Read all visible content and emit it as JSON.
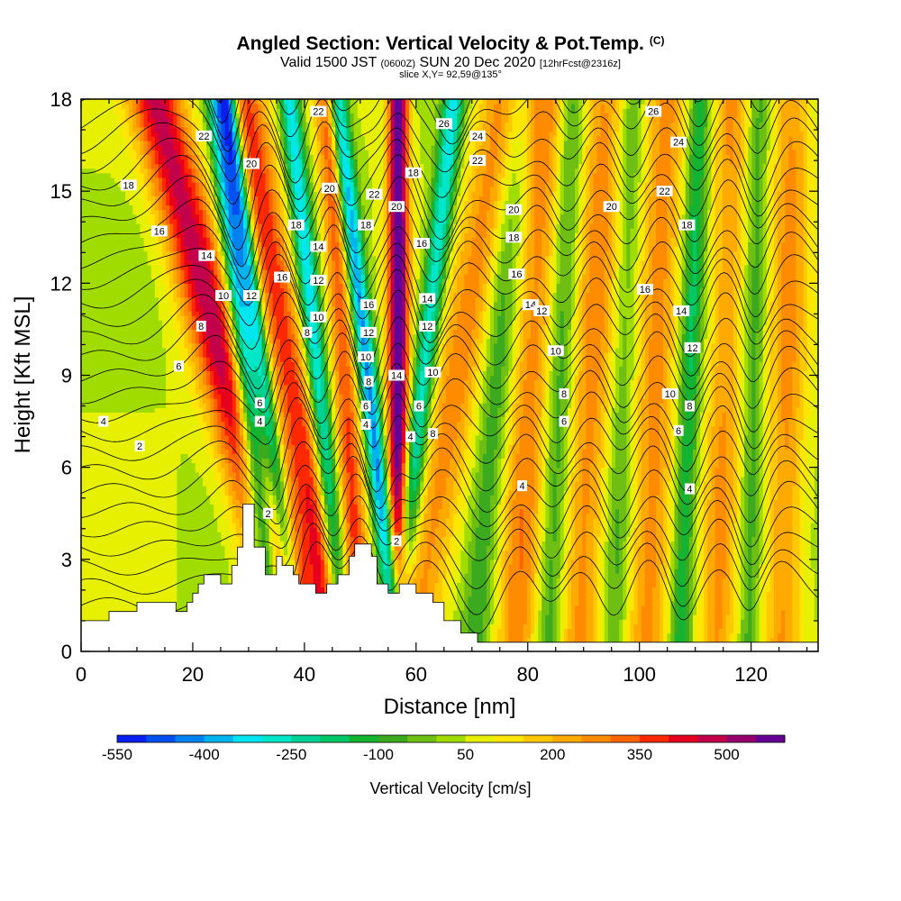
{
  "title": {
    "main": "Angled Section: Vertical Velocity & Pot.Temp.",
    "copyright": "(C)",
    "valid_prefix": "Valid 1500 JST",
    "valid_utc": "(0600Z)",
    "valid_date": "SUN 20 Dec 2020",
    "forecast": "[12hrFcst@2316z]",
    "slice": "slice X,Y= 92,59@135°"
  },
  "chart_data": {
    "type": "heatmap",
    "xlabel": "Distance [nm]",
    "ylabel": "Height [Kft MSL]",
    "xlim": [
      0,
      132
    ],
    "ylim": [
      0,
      18
    ],
    "x_ticks": [
      0,
      20,
      40,
      60,
      80,
      100,
      120
    ],
    "y_ticks": [
      0,
      3,
      6,
      9,
      12,
      15,
      18
    ],
    "colorbar": {
      "label": "Vertical Velocity [cm/s]",
      "ticks": [
        "-550",
        "-400",
        "-250",
        "-100",
        "50",
        "200",
        "350",
        "500"
      ],
      "bins": [
        -550,
        -500,
        -450,
        -400,
        -350,
        -300,
        -250,
        -200,
        -150,
        -100,
        -50,
        0,
        50,
        100,
        150,
        200,
        250,
        300,
        350,
        400,
        450,
        500,
        550
      ],
      "colors": [
        "#0a1ef0",
        "#0050f0",
        "#0082f0",
        "#00b4ef",
        "#00e6f0",
        "#00e6c8",
        "#00d296",
        "#00c864",
        "#14b432",
        "#3caa1e",
        "#6ebe14",
        "#a0dc00",
        "#e6f000",
        "#ffe600",
        "#ffc800",
        "#ffaa00",
        "#ff8c00",
        "#ff6400",
        "#ff2800",
        "#e6001e",
        "#c3004b",
        "#96006e",
        "#640096"
      ]
    },
    "terrain_kft": [
      [
        0,
        1.0
      ],
      [
        5,
        1.0
      ],
      [
        5,
        1.3
      ],
      [
        10,
        1.3
      ],
      [
        10,
        1.6
      ],
      [
        17,
        1.6
      ],
      [
        17,
        1.3
      ],
      [
        19,
        1.3
      ],
      [
        19,
        1.6
      ],
      [
        20,
        1.6
      ],
      [
        20,
        1.9
      ],
      [
        21,
        1.9
      ],
      [
        21,
        2.2
      ],
      [
        22,
        2.2
      ],
      [
        22,
        2.5
      ],
      [
        25,
        2.5
      ],
      [
        25,
        2.2
      ],
      [
        27,
        2.2
      ],
      [
        27,
        2.8
      ],
      [
        28,
        2.8
      ],
      [
        28,
        3.4
      ],
      [
        29,
        3.4
      ],
      [
        29,
        4.8
      ],
      [
        31,
        4.8
      ],
      [
        31,
        3.4
      ],
      [
        33,
        3.4
      ],
      [
        33,
        2.5
      ],
      [
        35,
        2.5
      ],
      [
        35,
        3.1
      ],
      [
        36,
        3.1
      ],
      [
        36,
        2.8
      ],
      [
        38,
        2.8
      ],
      [
        38,
        2.5
      ],
      [
        39,
        2.5
      ],
      [
        39,
        2.2
      ],
      [
        42,
        2.2
      ],
      [
        42,
        1.9
      ],
      [
        44,
        1.9
      ],
      [
        44,
        2.2
      ],
      [
        46,
        2.2
      ],
      [
        46,
        2.5
      ],
      [
        48,
        2.5
      ],
      [
        48,
        3.1
      ],
      [
        49,
        3.1
      ],
      [
        49,
        3.5
      ],
      [
        52,
        3.5
      ],
      [
        52,
        3.1
      ],
      [
        53,
        3.1
      ],
      [
        53,
        2.2
      ],
      [
        55,
        2.2
      ],
      [
        55,
        1.9
      ],
      [
        57,
        1.9
      ],
      [
        57,
        2.2
      ],
      [
        60,
        2.2
      ],
      [
        60,
        1.9
      ],
      [
        63,
        1.9
      ],
      [
        63,
        1.6
      ],
      [
        65,
        1.6
      ],
      [
        65,
        1.0
      ],
      [
        68,
        1.0
      ],
      [
        68,
        0.6
      ],
      [
        71,
        0.6
      ],
      [
        71,
        0.3
      ],
      [
        132,
        0.3
      ]
    ],
    "theta_contour_labels": [
      {
        "x": 10.5,
        "y": 6.7,
        "text": "2"
      },
      {
        "x": 4.0,
        "y": 7.5,
        "text": "4"
      },
      {
        "x": 17.5,
        "y": 9.3,
        "text": "6"
      },
      {
        "x": 21.5,
        "y": 10.6,
        "text": "8"
      },
      {
        "x": 25.5,
        "y": 11.6,
        "text": "10"
      },
      {
        "x": 22.5,
        "y": 12.9,
        "text": "14"
      },
      {
        "x": 14.0,
        "y": 13.7,
        "text": "16"
      },
      {
        "x": 8.5,
        "y": 15.2,
        "text": "18"
      },
      {
        "x": 22.0,
        "y": 16.8,
        "text": "22"
      },
      {
        "x": 30.5,
        "y": 11.6,
        "text": "12"
      },
      {
        "x": 32.0,
        "y": 8.1,
        "text": "6"
      },
      {
        "x": 32.0,
        "y": 7.5,
        "text": "4"
      },
      {
        "x": 33.5,
        "y": 4.5,
        "text": "2"
      },
      {
        "x": 30.5,
        "y": 15.9,
        "text": "20"
      },
      {
        "x": 36.0,
        "y": 12.2,
        "text": "16"
      },
      {
        "x": 38.5,
        "y": 13.9,
        "text": "18"
      },
      {
        "x": 40.5,
        "y": 10.4,
        "text": "8"
      },
      {
        "x": 42.5,
        "y": 10.9,
        "text": "10"
      },
      {
        "x": 42.5,
        "y": 12.1,
        "text": "12"
      },
      {
        "x": 42.5,
        "y": 13.2,
        "text": "14"
      },
      {
        "x": 44.5,
        "y": 15.1,
        "text": "20"
      },
      {
        "x": 42.5,
        "y": 17.6,
        "text": "22"
      },
      {
        "x": 51.5,
        "y": 11.3,
        "text": "16"
      },
      {
        "x": 51.5,
        "y": 10.4,
        "text": "12"
      },
      {
        "x": 51.0,
        "y": 9.6,
        "text": "10"
      },
      {
        "x": 51.5,
        "y": 8.8,
        "text": "8"
      },
      {
        "x": 51.0,
        "y": 8.0,
        "text": "6"
      },
      {
        "x": 51.0,
        "y": 7.4,
        "text": "4"
      },
      {
        "x": 51.0,
        "y": 13.9,
        "text": "18"
      },
      {
        "x": 52.5,
        "y": 14.9,
        "text": "22"
      },
      {
        "x": 56.5,
        "y": 9.0,
        "text": "14"
      },
      {
        "x": 56.5,
        "y": 14.5,
        "text": "20"
      },
      {
        "x": 56.5,
        "y": 3.6,
        "text": "2"
      },
      {
        "x": 59.0,
        "y": 7.0,
        "text": "4"
      },
      {
        "x": 60.5,
        "y": 8.0,
        "text": "6"
      },
      {
        "x": 63.0,
        "y": 7.1,
        "text": "8"
      },
      {
        "x": 63.0,
        "y": 9.1,
        "text": "10"
      },
      {
        "x": 62.0,
        "y": 10.6,
        "text": "12"
      },
      {
        "x": 62.0,
        "y": 11.5,
        "text": "14"
      },
      {
        "x": 61.0,
        "y": 13.3,
        "text": "16"
      },
      {
        "x": 59.5,
        "y": 15.6,
        "text": "18"
      },
      {
        "x": 65.0,
        "y": 17.2,
        "text": "26"
      },
      {
        "x": 71.0,
        "y": 16.0,
        "text": "22"
      },
      {
        "x": 71.0,
        "y": 16.8,
        "text": "24"
      },
      {
        "x": 77.5,
        "y": 14.4,
        "text": "20"
      },
      {
        "x": 77.5,
        "y": 13.5,
        "text": "18"
      },
      {
        "x": 78.0,
        "y": 12.3,
        "text": "16"
      },
      {
        "x": 80.5,
        "y": 11.3,
        "text": "14"
      },
      {
        "x": 82.5,
        "y": 11.1,
        "text": "12"
      },
      {
        "x": 85.0,
        "y": 9.8,
        "text": "10"
      },
      {
        "x": 86.5,
        "y": 8.4,
        "text": "8"
      },
      {
        "x": 86.5,
        "y": 7.5,
        "text": "6"
      },
      {
        "x": 79.0,
        "y": 5.4,
        "text": "4"
      },
      {
        "x": 102.5,
        "y": 17.6,
        "text": "26"
      },
      {
        "x": 107.0,
        "y": 16.6,
        "text": "24"
      },
      {
        "x": 104.5,
        "y": 15.0,
        "text": "22"
      },
      {
        "x": 95.0,
        "y": 14.5,
        "text": "20"
      },
      {
        "x": 108.5,
        "y": 13.9,
        "text": "18"
      },
      {
        "x": 101.0,
        "y": 11.8,
        "text": "16"
      },
      {
        "x": 107.5,
        "y": 11.1,
        "text": "14"
      },
      {
        "x": 109.5,
        "y": 9.9,
        "text": "12"
      },
      {
        "x": 105.5,
        "y": 8.4,
        "text": "10"
      },
      {
        "x": 109.0,
        "y": 8.0,
        "text": "8"
      },
      {
        "x": 107.0,
        "y": 7.2,
        "text": "6"
      },
      {
        "x": 109.0,
        "y": 5.3,
        "text": "4"
      }
    ]
  }
}
